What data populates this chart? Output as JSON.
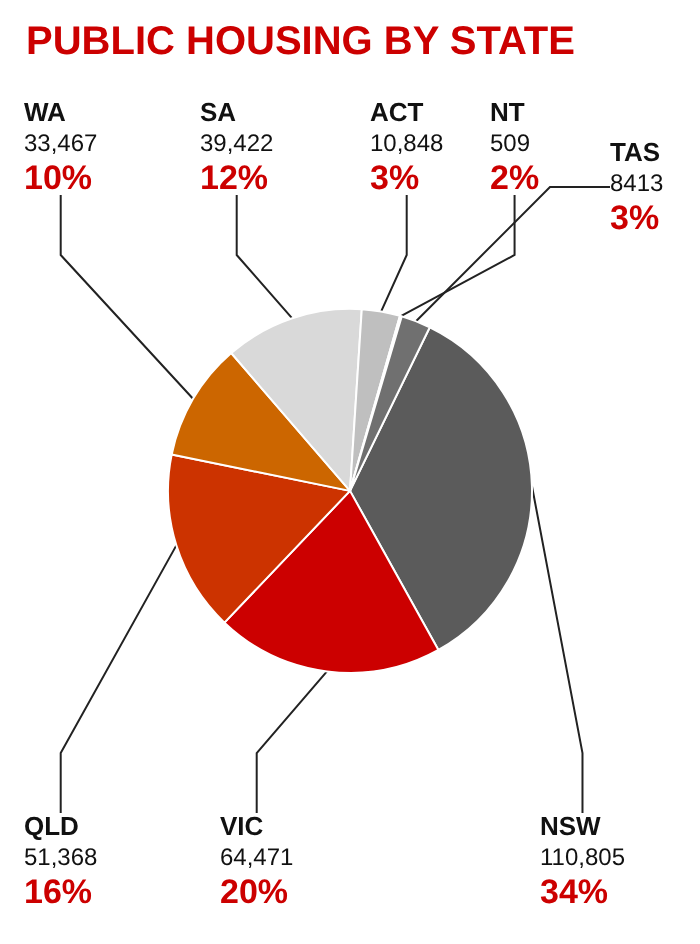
{
  "chart_data": {
    "type": "pie",
    "title": "PUBLIC HOUSING BY STATE",
    "categories": [
      "NSW",
      "VIC",
      "QLD",
      "WA",
      "SA",
      "ACT",
      "NT",
      "TAS"
    ],
    "values": [
      110805,
      64471,
      51368,
      33467,
      39422,
      10848,
      509,
      8413
    ],
    "value_labels": [
      "110,805\n34%",
      "64,471\n20%",
      "51,368\n16%",
      "33,467\n10%",
      "39,422\n12%",
      "10,848\n3%",
      "509\n2%",
      "8413\n3%"
    ],
    "colors": [
      "#5b5b5b",
      "#cc0000",
      "#cc3300",
      "#cc6600",
      "#d9d9d9",
      "#bfbfbf",
      "#8c8c8c",
      "#707070"
    ],
    "legend": false
  }
}
